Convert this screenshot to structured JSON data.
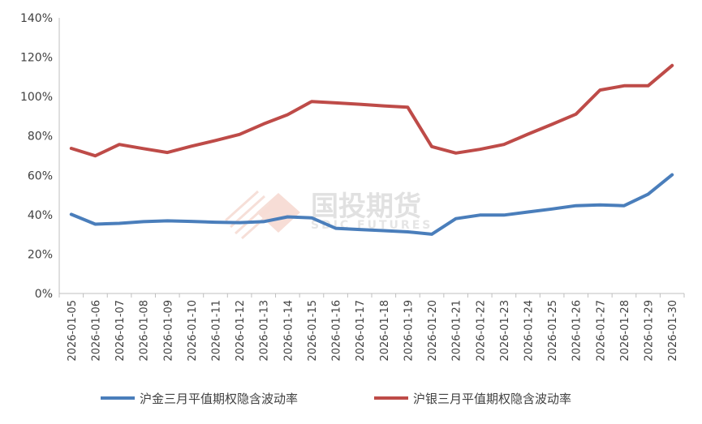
{
  "chart_data": {
    "type": "line",
    "categories": [
      "2026-01-05",
      "2026-01-06",
      "2026-01-07",
      "2026-01-08",
      "2026-01-09",
      "2026-01-10",
      "2026-01-11",
      "2026-01-12",
      "2026-01-13",
      "2026-01-14",
      "2026-01-15",
      "2026-01-16",
      "2026-01-17",
      "2026-01-18",
      "2026-01-19",
      "2026-01-20",
      "2026-01-21",
      "2026-01-22",
      "2026-01-23",
      "2026-01-24",
      "2026-01-25",
      "2026-01-26",
      "2026-01-27",
      "2026-01-28",
      "2026-01-29",
      "2026-01-30"
    ],
    "series": [
      {
        "name": "沪金三月平值期权隐含波动率",
        "color": "#4a7ebb",
        "values": [
          40.2,
          35.2,
          35.6,
          36.5,
          36.9,
          36.6,
          36.2,
          36.0,
          36.5,
          38.9,
          38.4,
          33.1,
          32.5,
          31.9,
          31.3,
          30.1,
          38.0,
          39.8,
          39.8,
          41.4,
          42.9,
          44.6,
          45.0,
          44.6,
          50.4,
          60.3
        ]
      },
      {
        "name": "沪银三月平值期权隐含波动率",
        "color": "#be4b48",
        "values": [
          73.7,
          69.9,
          75.7,
          73.6,
          71.6,
          74.8,
          77.7,
          80.8,
          86.1,
          90.8,
          97.5,
          96.8,
          96.1,
          95.3,
          94.6,
          74.6,
          71.3,
          73.2,
          75.7,
          80.9,
          85.9,
          91.1,
          103.3,
          105.5,
          105.5,
          115.8
        ]
      }
    ],
    "yticks": [
      "0%",
      "20%",
      "40%",
      "60%",
      "80%",
      "100%",
      "120%",
      "140%"
    ],
    "ylim": [
      0,
      140
    ],
    "grid": false,
    "legend_position": "bottom"
  },
  "watermark": {
    "title": "国投期货",
    "subtitle": "SDIC FUTURES"
  }
}
